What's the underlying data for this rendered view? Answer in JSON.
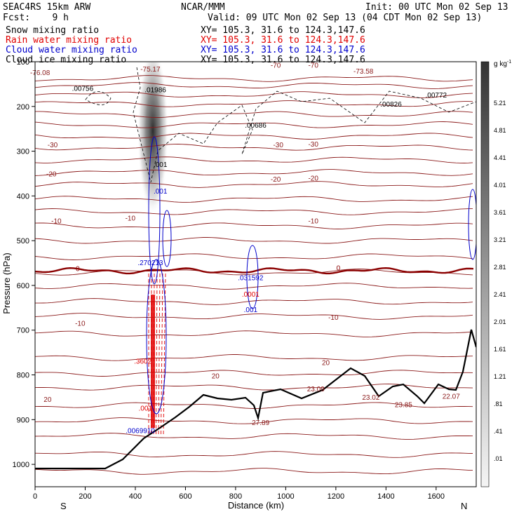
{
  "header": {
    "model": "SEAC4RS 15km ARW",
    "center": "NCAR/MMM",
    "init": "Init: 00 UTC Mon 02 Sep 13",
    "fcst": "Fcst:    9 h",
    "valid": "Valid: 09 UTC Mon 02 Sep 13 (04 CDT Mon 02 Sep 13)",
    "line3": "XY= 105.3, 31.6 to 124.3,147.6",
    "line4": "XY= 105.3, 31.6 to 124.3,147.6",
    "line5": "XY= 105.3, 31.6 to 124.3,147.6",
    "line6": "XY= 105.3, 31.6 to 124.3,147.6"
  },
  "fields": [
    {
      "label": "Snow mixing ratio",
      "color": "#000000"
    },
    {
      "label": "Rain water mixing ratio",
      "color": "#e00000"
    },
    {
      "label": "Cloud water mixing ratio",
      "color": "#0000cc"
    },
    {
      "label": "Cloud ice mixing ratio",
      "color": "#000000"
    }
  ],
  "colors": {
    "temp": "#8b1a1a",
    "zero": "#8b0000",
    "terrain": "#000000",
    "rain": "#e00000",
    "cloud": "#0000cc"
  },
  "chart_data": {
    "type": "contour-cross-section",
    "xlabel": "Distance (km)",
    "ylabel": "Pressure (hPa)",
    "xlim": [
      0,
      1760
    ],
    "ylim": [
      1050,
      100
    ],
    "x_ticks": [
      "0",
      "200",
      "400",
      "600",
      "800",
      "1000",
      "1200",
      "1400",
      "1600"
    ],
    "y_ticks": [
      "100",
      "200",
      "300",
      "400",
      "500",
      "600",
      "700",
      "800",
      "900",
      "1000"
    ],
    "x_end_labels": {
      "left": "S",
      "right": "N"
    },
    "colorbar": {
      "unit": "g kg",
      "unit_exp": "-1",
      "labels": [
        "5.21",
        "4.81",
        "4.41",
        "4.01",
        "3.61",
        "3.21",
        "2.81",
        "2.41",
        "2.01",
        "1.61",
        "1.21",
        ".81",
        ".41",
        ".01"
      ]
    },
    "temperature_labels": [
      {
        "text": "-76.08",
        "x": 20,
        "p": 130,
        "c": "temp"
      },
      {
        "text": "-75.17",
        "x": 460,
        "p": 122,
        "c": "temp"
      },
      {
        "text": "-70",
        "x": 960,
        "p": 113,
        "c": "temp"
      },
      {
        "text": "-70",
        "x": 1110,
        "p": 113,
        "c": "temp"
      },
      {
        "text": "-73.58",
        "x": 1310,
        "p": 127,
        "c": "temp"
      },
      {
        "text": "-30",
        "x": 70,
        "p": 291,
        "c": "temp"
      },
      {
        "text": "-30",
        "x": 970,
        "p": 291,
        "c": "temp"
      },
      {
        "text": "-30",
        "x": 1110,
        "p": 290,
        "c": "temp"
      },
      {
        "text": "-20",
        "x": 65,
        "p": 356,
        "c": "temp"
      },
      {
        "text": "-20",
        "x": 960,
        "p": 368,
        "c": "temp"
      },
      {
        "text": "-20",
        "x": 1110,
        "p": 366,
        "c": "temp"
      },
      {
        "text": "-10",
        "x": 85,
        "p": 461,
        "c": "temp"
      },
      {
        "text": "-10",
        "x": 380,
        "p": 455,
        "c": "temp"
      },
      {
        "text": "-10",
        "x": 1110,
        "p": 461,
        "c": "temp"
      },
      {
        "text": "0",
        "x": 170,
        "p": 568,
        "c": "zero"
      },
      {
        "text": "0",
        "x": 1210,
        "p": 566,
        "c": "zero"
      },
      {
        "text": "-10",
        "x": 180,
        "p": 690,
        "c": "temp"
      },
      {
        "text": "-10",
        "x": 1190,
        "p": 677,
        "c": "temp"
      },
      {
        "text": "20",
        "x": 720,
        "p": 808,
        "c": "temp"
      },
      {
        "text": "20",
        "x": 1160,
        "p": 778,
        "c": "temp"
      },
      {
        "text": "20",
        "x": 50,
        "p": 860,
        "c": "temp"
      }
    ],
    "extrema_labels": [
      {
        "text": ".00756",
        "x": 190,
        "p": 165,
        "c": "terrain"
      },
      {
        "text": ".01986",
        "x": 480,
        "p": 168,
        "c": "terrain"
      },
      {
        "text": ".00686",
        "x": 880,
        "p": 247,
        "c": "terrain"
      },
      {
        "text": ".00826",
        "x": 1420,
        "p": 200,
        "c": "terrain"
      },
      {
        "text": ".00772",
        "x": 1600,
        "p": 180,
        "c": "terrain"
      },
      {
        "text": ".001",
        "x": 500,
        "p": 335,
        "c": "terrain"
      },
      {
        "text": ".001",
        "x": 500,
        "p": 395,
        "c": "cloud"
      },
      {
        "text": ".270213",
        "x": 460,
        "p": 555,
        "c": "cloud"
      },
      {
        "text": ".031592",
        "x": 860,
        "p": 588,
        "c": "cloud"
      },
      {
        "text": ".0001",
        "x": 860,
        "p": 625,
        "c": "rain"
      },
      {
        "text": ".001",
        "x": 860,
        "p": 660,
        "c": "cloud"
      },
      {
        "text": ".3602",
        "x": 430,
        "p": 775,
        "c": "rain"
      },
      {
        "text": ".001",
        "x": 440,
        "p": 880,
        "c": "rain"
      },
      {
        "text": ".0069910",
        "x": 420,
        "p": 930,
        "c": "cloud"
      },
      {
        "text": "27.89",
        "x": 900,
        "p": 912,
        "c": "temp"
      },
      {
        "text": "23.09",
        "x": 1120,
        "p": 837,
        "c": "temp"
      },
      {
        "text": "23.02",
        "x": 1340,
        "p": 856,
        "c": "temp"
      },
      {
        "text": "23.85",
        "x": 1470,
        "p": 872,
        "c": "temp"
      },
      {
        "text": "22.07",
        "x": 1660,
        "p": 853,
        "c": "temp"
      }
    ]
  }
}
